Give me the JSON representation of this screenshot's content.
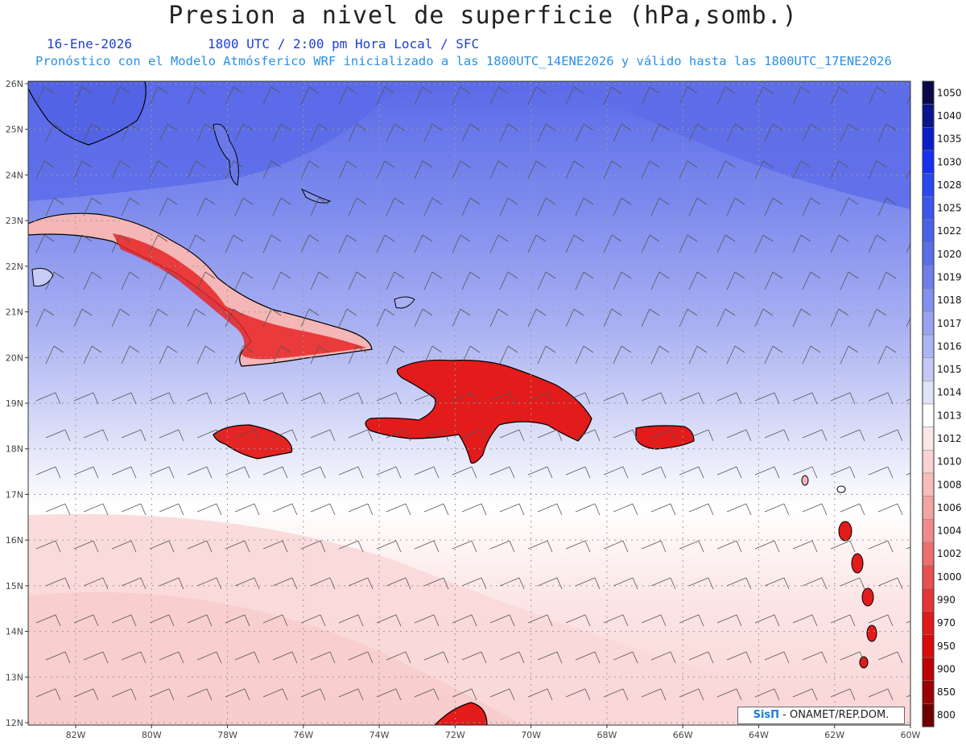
{
  "header": {
    "title": "Presion a nivel de superficie (hPa,somb.)",
    "date": "16-Ene-2026",
    "time": "1800 UTC / 2:00 pm Hora Local / SFC",
    "forecast": "Pronóstico con el Modelo Atmósferico WRF inicializado a las 1800UTC_14ENE2026 y válido hasta las  1800UTC_17ENE2026"
  },
  "map": {
    "lat_labels": [
      "26N",
      "25N",
      "24N",
      "23N",
      "22N",
      "21N",
      "20N",
      "19N",
      "18N",
      "17N",
      "16N",
      "15N",
      "14N",
      "13N",
      "12N"
    ],
    "lon_labels": [
      "82W",
      "80W",
      "78W",
      "76W",
      "74W",
      "72W",
      "70W",
      "68W",
      "66W",
      "64W",
      "62W",
      "60W"
    ],
    "colors": {
      "high": "#5a6ae8",
      "mid": "#a9b0f2",
      "neutral": "#f7f7fb",
      "low": "#fbe0e0",
      "land_low": "#e31b1b"
    }
  },
  "colorbar": {
    "levels": [
      {
        "label": "1050",
        "color": "#0a0a4a"
      },
      {
        "label": "1040",
        "color": "#0a148c"
      },
      {
        "label": "1035",
        "color": "#0a1ec8"
      },
      {
        "label": "1030",
        "color": "#1430f0"
      },
      {
        "label": "1028",
        "color": "#2a48f0"
      },
      {
        "label": "1025",
        "color": "#3a56ec"
      },
      {
        "label": "1022",
        "color": "#4a62ea"
      },
      {
        "label": "1020",
        "color": "#5a6ee8"
      },
      {
        "label": "1019",
        "color": "#6e7eea"
      },
      {
        "label": "1018",
        "color": "#8390ee"
      },
      {
        "label": "1017",
        "color": "#98a2f0"
      },
      {
        "label": "1016",
        "color": "#adb4f2"
      },
      {
        "label": "1015",
        "color": "#c4c8f5"
      },
      {
        "label": "1014",
        "color": "#e0e2f8"
      },
      {
        "label": "1013",
        "color": "#ffffff"
      },
      {
        "label": "1012",
        "color": "#fce6e6"
      },
      {
        "label": "1010",
        "color": "#f9d2d2"
      },
      {
        "label": "1008",
        "color": "#f6bcbc"
      },
      {
        "label": "1006",
        "color": "#f3a4a4"
      },
      {
        "label": "1004",
        "color": "#f08a8a"
      },
      {
        "label": "1002",
        "color": "#ec6e6e"
      },
      {
        "label": "1000",
        "color": "#e85050"
      },
      {
        "label": "990",
        "color": "#e43434"
      },
      {
        "label": "970",
        "color": "#e01a1a"
      },
      {
        "label": "950",
        "color": "#d80a0a"
      },
      {
        "label": "900",
        "color": "#c00000"
      },
      {
        "label": "850",
        "color": "#9c0000"
      },
      {
        "label": "800",
        "color": "#700000"
      }
    ]
  },
  "credit": {
    "logo": "SisΠ",
    "text": " - ONAMET/REP.DOM."
  }
}
